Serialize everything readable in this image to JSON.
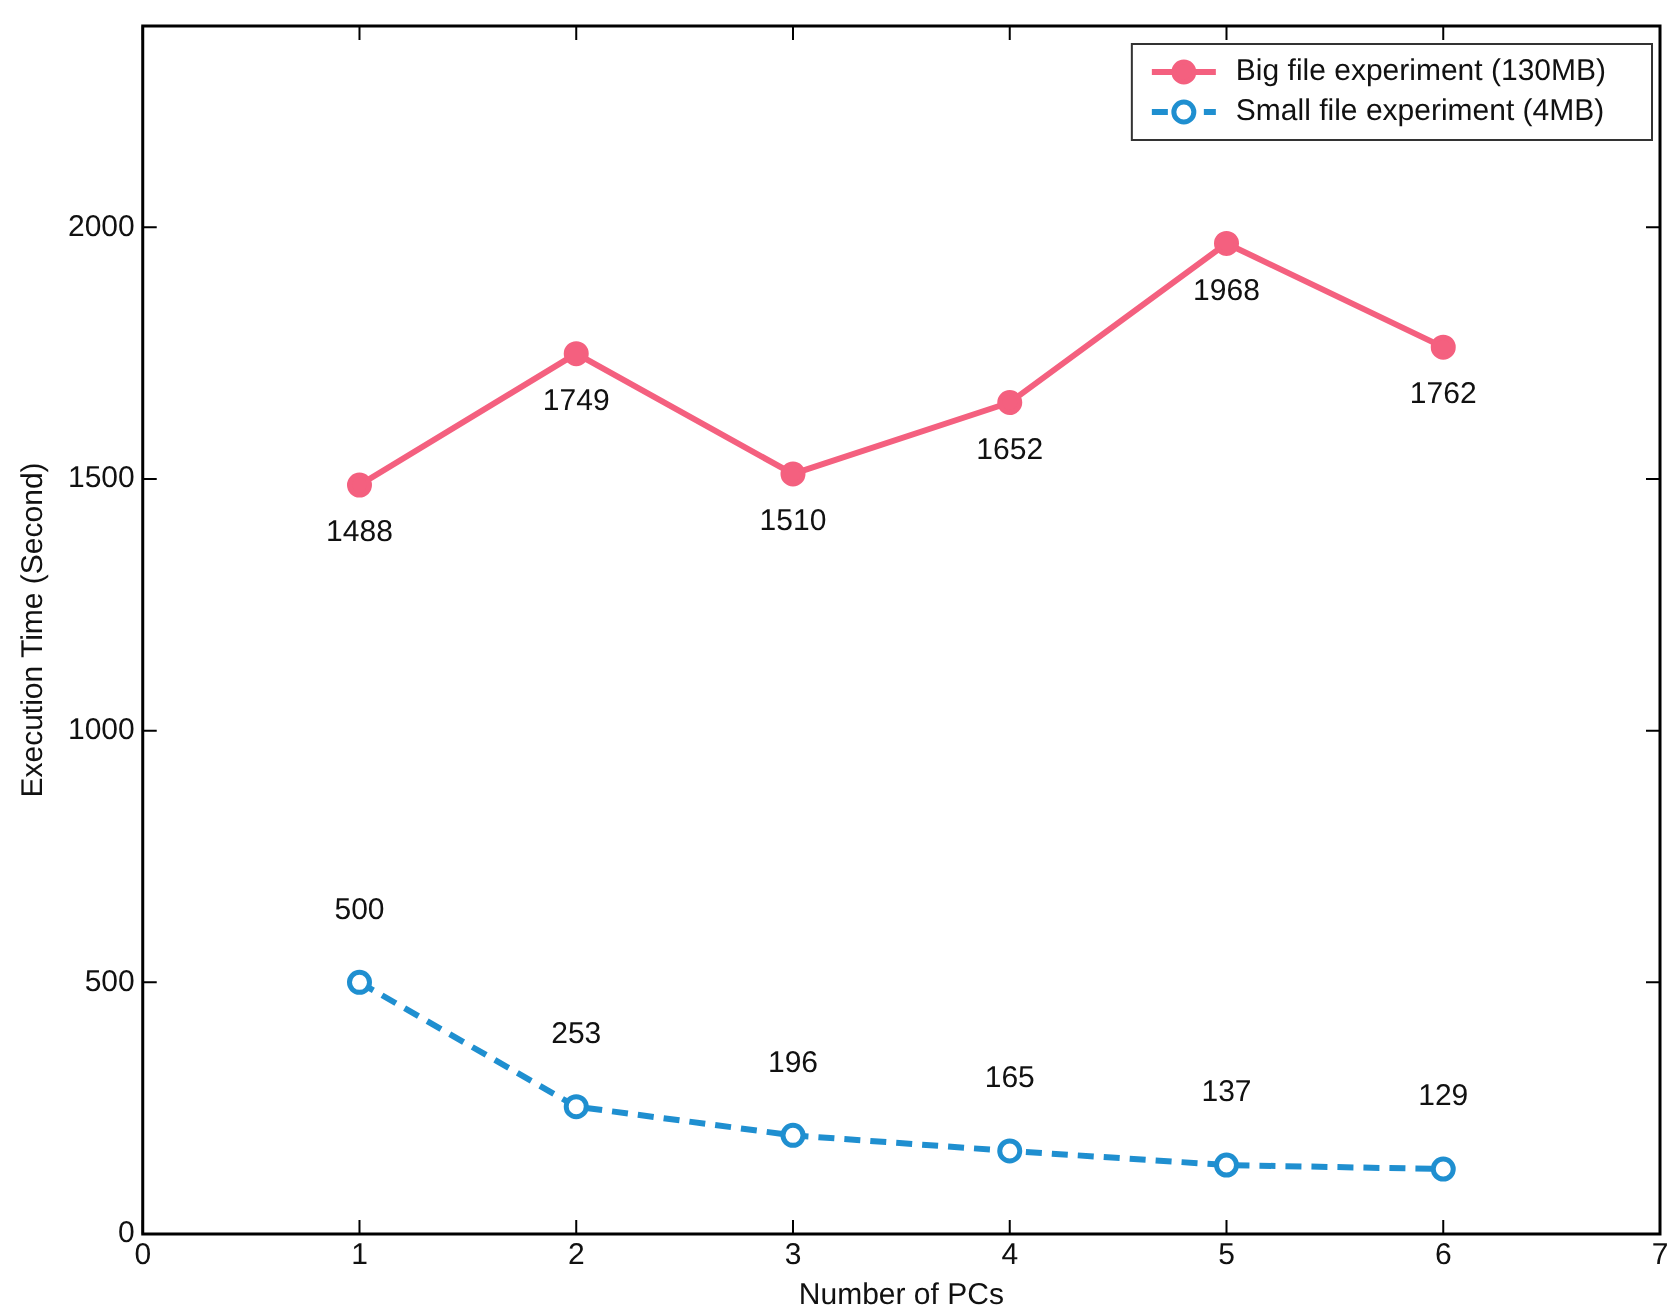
{
  "chart_data": {
    "type": "line",
    "xlabel": "Number of PCs",
    "ylabel": "Execution Time (Second)",
    "x": [
      1,
      2,
      3,
      4,
      5,
      6
    ],
    "series": [
      {
        "name": "Big file experiment (130MB)",
        "color": "#f4607f",
        "values": [
          1488,
          1749,
          1510,
          1652,
          1968,
          1762
        ],
        "line_style": "solid"
      },
      {
        "name": "Small file experiment (4MB)",
        "color": "#1f8fd0",
        "values": [
          500,
          253,
          196,
          165,
          137,
          129
        ],
        "line_style": "dashed"
      }
    ],
    "xlim": [
      0,
      7
    ],
    "xticks": [
      0,
      1,
      2,
      3,
      4,
      5,
      6,
      7
    ],
    "ylim": [
      0,
      2400
    ],
    "yticks": [
      0,
      500,
      1000,
      1500,
      2000
    ],
    "marker": "circle",
    "legend": "top right",
    "data_labels": true
  }
}
